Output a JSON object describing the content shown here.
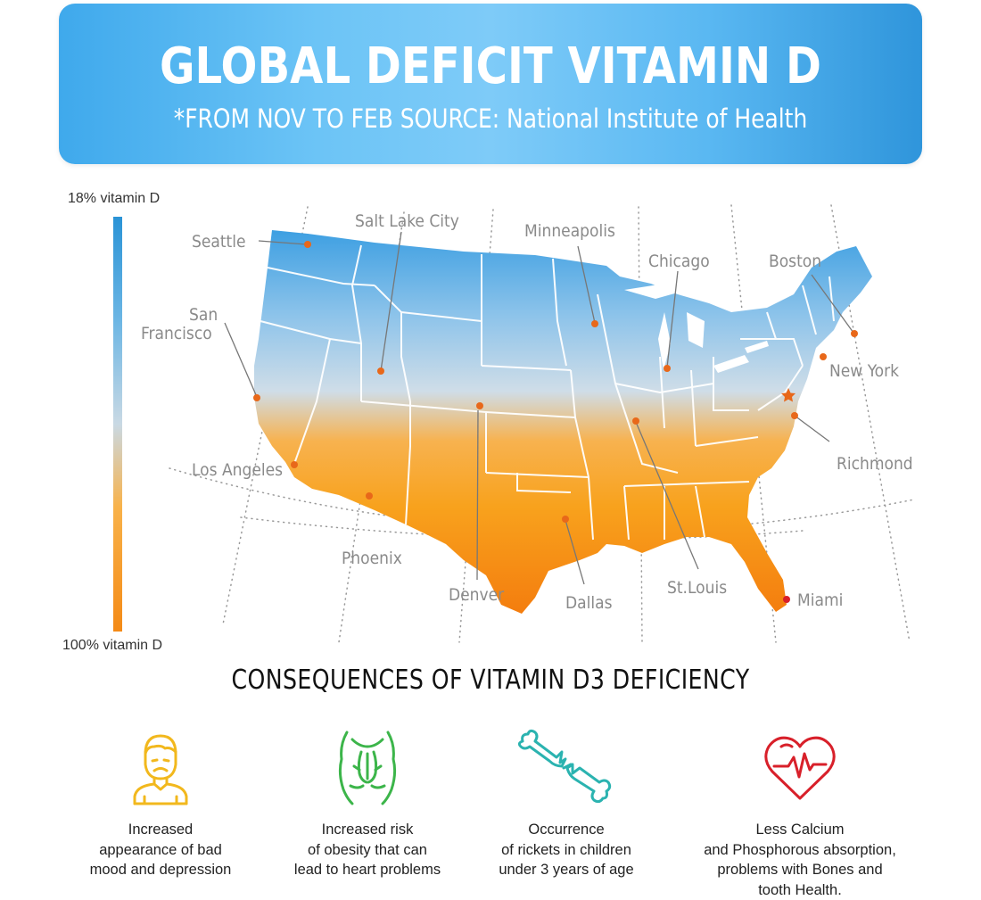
{
  "header": {
    "title": "GLOBAL DEFICIT VITAMIN D",
    "subtitle": "*FROM NOV TO FEB SOURCE: National Institute of Health"
  },
  "legend": {
    "top_label": "18% vitamin D",
    "bottom_label": "100% vitamin D",
    "top_color": "#2a93d6",
    "bottom_color": "#f48a16"
  },
  "map": {
    "cities": [
      {
        "name": "Seattle"
      },
      {
        "name": "Salt Lake City"
      },
      {
        "name": "Minneapolis"
      },
      {
        "name": "Chicago"
      },
      {
        "name": "Boston"
      },
      {
        "name": "San"
      },
      {
        "name": "Francisco"
      },
      {
        "name": "New York"
      },
      {
        "name": "Richmond"
      },
      {
        "name": "Los Angeles"
      },
      {
        "name": "Phoenix"
      },
      {
        "name": "Denver"
      },
      {
        "name": "Dallas"
      },
      {
        "name": "St.Louis"
      },
      {
        "name": "Miami"
      }
    ],
    "marker_color": "#e8681a",
    "miami_marker_color": "#d8202a"
  },
  "consequences": {
    "title": "CONSEQUENCES OF VITAMIN D3 DEFICIENCY",
    "items": [
      {
        "icon": "sad-person-icon",
        "color": "#f2b81d",
        "lines": [
          "Increased",
          "appearance of bad",
          "mood and depression"
        ]
      },
      {
        "icon": "torso-icon",
        "color": "#3cb54a",
        "lines": [
          "Increased risk",
          "of obesity that can",
          "lead to heart problems"
        ]
      },
      {
        "icon": "broken-bone-icon",
        "color": "#2bb3b0",
        "lines": [
          "Occurrence",
          "of rickets in children",
          "under 3 years of age"
        ]
      },
      {
        "icon": "heart-pulse-icon",
        "color": "#d8202a",
        "lines": [
          "Less Calcium",
          "and Phosphorous absorption,",
          "problems with Bones and",
          "tooth Health."
        ]
      }
    ]
  }
}
